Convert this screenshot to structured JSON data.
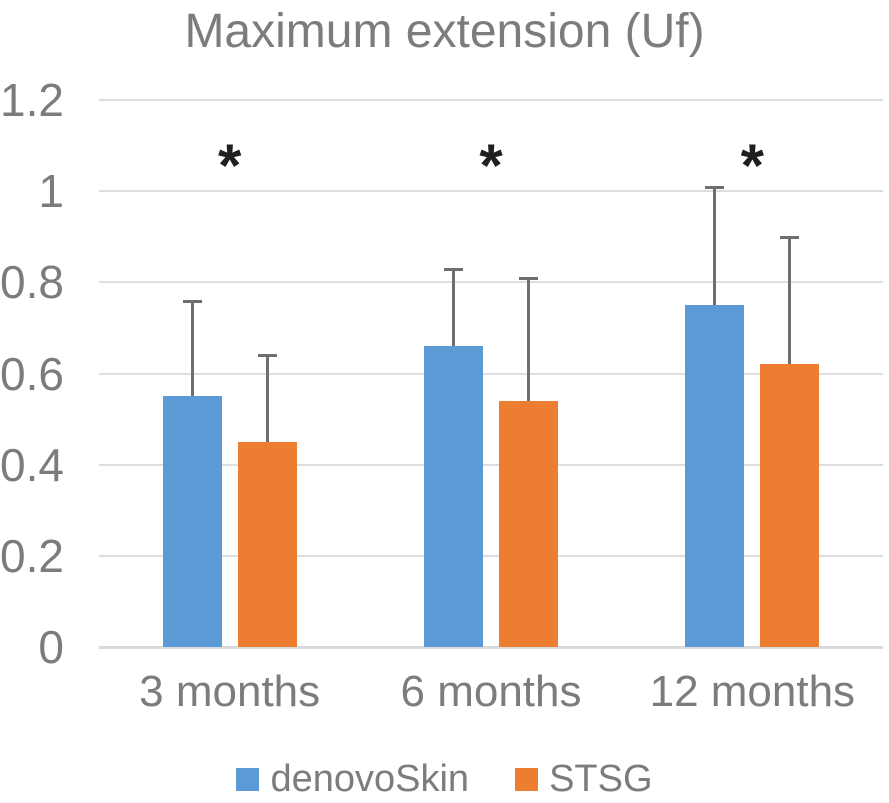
{
  "chart_data": {
    "type": "bar",
    "title": "Maximum extension (Uf)",
    "categories": [
      "3 months",
      "6 months",
      "12 months"
    ],
    "series": [
      {
        "name": "denovoSkin",
        "color": "#5B9BD5",
        "values": [
          0.55,
          0.66,
          0.75
        ],
        "error_plus": [
          0.21,
          0.17,
          0.26
        ],
        "error_tops": [
          0.76,
          0.83,
          1.01
        ]
      },
      {
        "name": "STSG",
        "color": "#ED7D31",
        "values": [
          0.45,
          0.54,
          0.62
        ],
        "error_plus": [
          0.19,
          0.27,
          0.28
        ],
        "error_tops": [
          0.64,
          0.81,
          0.9
        ]
      }
    ],
    "significance_markers": [
      "*",
      "*",
      "*"
    ],
    "yticks": [
      {
        "value": 0,
        "label": "0"
      },
      {
        "value": 0.2,
        "label": "0.2"
      },
      {
        "value": 0.4,
        "label": "0.4"
      },
      {
        "value": 0.6,
        "label": "0.6"
      },
      {
        "value": 0.8,
        "label": "0.8"
      },
      {
        "value": 1,
        "label": "1"
      },
      {
        "value": 1.2,
        "label": "1.2"
      }
    ],
    "ylim": [
      0,
      1.2
    ],
    "xlabel": "",
    "ylabel": "",
    "grid": true,
    "legend_position": "bottom"
  },
  "colors": {
    "series_blue": "#5B9BD5",
    "series_orange": "#ED7D31",
    "gridline": "#DDDEDF",
    "axis_line": "#D9DADB",
    "error_bar": "#6E6F72",
    "text_gray": "#7C7C7C",
    "marker_black": "#1F1F1F"
  }
}
